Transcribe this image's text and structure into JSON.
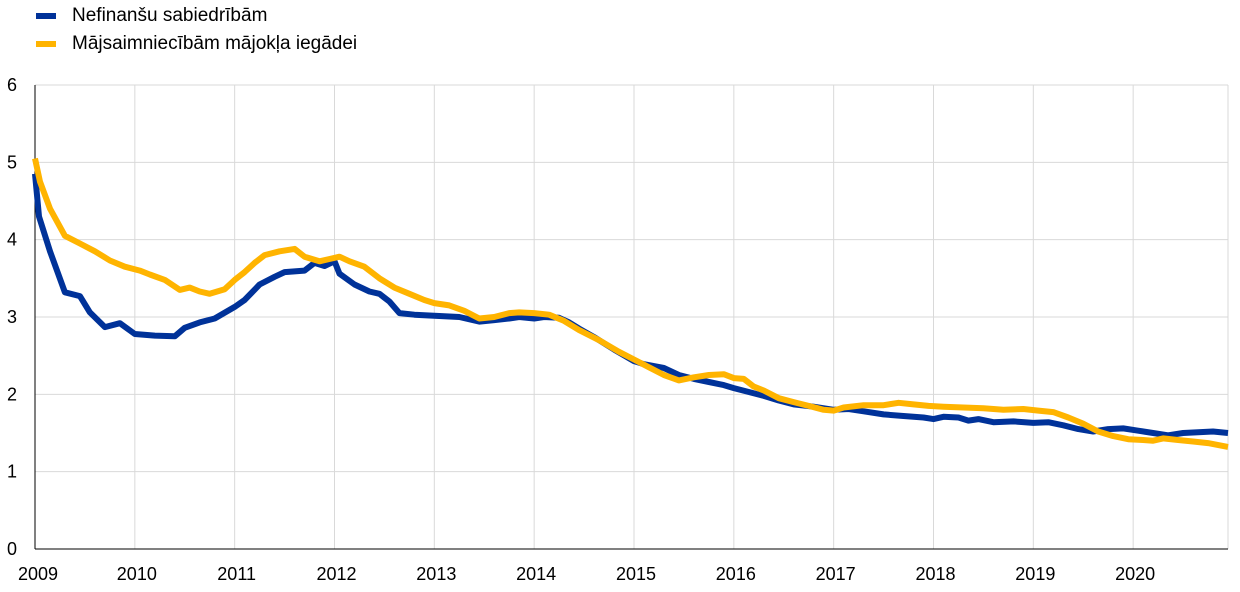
{
  "chart_data": {
    "type": "line",
    "title": "",
    "xlabel": "",
    "ylabel": "",
    "ylim": [
      0,
      6
    ],
    "yticks": [
      0,
      1,
      2,
      3,
      4,
      5,
      6
    ],
    "xlim": [
      2009.0,
      2020.95
    ],
    "xticks": [
      "2009",
      "2010",
      "2011",
      "2012",
      "2013",
      "2014",
      "2015",
      "2016",
      "2017",
      "2018",
      "2019",
      "2020"
    ],
    "grid": true,
    "legend_position": "top-left",
    "series": [
      {
        "name": "Nefinanšu sabiedrībām",
        "color": "#003299",
        "points": [
          [
            2009.0,
            4.85
          ],
          [
            2009.04,
            4.3
          ],
          [
            2009.15,
            3.85
          ],
          [
            2009.3,
            3.32
          ],
          [
            2009.45,
            3.27
          ],
          [
            2009.55,
            3.06
          ],
          [
            2009.7,
            2.87
          ],
          [
            2009.85,
            2.92
          ],
          [
            2010.0,
            2.78
          ],
          [
            2010.2,
            2.76
          ],
          [
            2010.4,
            2.75
          ],
          [
            2010.5,
            2.86
          ],
          [
            2010.65,
            2.93
          ],
          [
            2010.8,
            2.98
          ],
          [
            2011.0,
            3.13
          ],
          [
            2011.1,
            3.22
          ],
          [
            2011.25,
            3.42
          ],
          [
            2011.4,
            3.52
          ],
          [
            2011.5,
            3.58
          ],
          [
            2011.7,
            3.6
          ],
          [
            2011.8,
            3.7
          ],
          [
            2011.9,
            3.66
          ],
          [
            2012.0,
            3.72
          ],
          [
            2012.05,
            3.56
          ],
          [
            2012.2,
            3.42
          ],
          [
            2012.35,
            3.33
          ],
          [
            2012.45,
            3.3
          ],
          [
            2012.55,
            3.2
          ],
          [
            2012.65,
            3.05
          ],
          [
            2012.8,
            3.03
          ],
          [
            2012.95,
            3.02
          ],
          [
            2013.1,
            3.01
          ],
          [
            2013.25,
            3.0
          ],
          [
            2013.45,
            2.94
          ],
          [
            2013.6,
            2.96
          ],
          [
            2013.75,
            2.98
          ],
          [
            2013.85,
            3.0
          ],
          [
            2014.0,
            2.98
          ],
          [
            2014.1,
            3.0
          ],
          [
            2014.25,
            2.99
          ],
          [
            2014.35,
            2.93
          ],
          [
            2014.45,
            2.85
          ],
          [
            2014.6,
            2.74
          ],
          [
            2014.8,
            2.58
          ],
          [
            2015.0,
            2.43
          ],
          [
            2015.1,
            2.39
          ],
          [
            2015.3,
            2.34
          ],
          [
            2015.45,
            2.25
          ],
          [
            2015.6,
            2.2
          ],
          [
            2015.75,
            2.16
          ],
          [
            2015.9,
            2.12
          ],
          [
            2016.0,
            2.08
          ],
          [
            2016.15,
            2.03
          ],
          [
            2016.3,
            1.98
          ],
          [
            2016.45,
            1.92
          ],
          [
            2016.6,
            1.87
          ],
          [
            2016.8,
            1.84
          ],
          [
            2017.0,
            1.8
          ],
          [
            2017.15,
            1.81
          ],
          [
            2017.3,
            1.78
          ],
          [
            2017.5,
            1.74
          ],
          [
            2017.7,
            1.72
          ],
          [
            2017.9,
            1.7
          ],
          [
            2018.0,
            1.68
          ],
          [
            2018.1,
            1.71
          ],
          [
            2018.25,
            1.7
          ],
          [
            2018.35,
            1.66
          ],
          [
            2018.45,
            1.68
          ],
          [
            2018.6,
            1.64
          ],
          [
            2018.8,
            1.65
          ],
          [
            2019.0,
            1.63
          ],
          [
            2019.15,
            1.64
          ],
          [
            2019.3,
            1.6
          ],
          [
            2019.45,
            1.55
          ],
          [
            2019.6,
            1.52
          ],
          [
            2019.75,
            1.55
          ],
          [
            2019.9,
            1.56
          ],
          [
            2020.05,
            1.53
          ],
          [
            2020.2,
            1.5
          ],
          [
            2020.35,
            1.47
          ],
          [
            2020.5,
            1.5
          ],
          [
            2020.65,
            1.51
          ],
          [
            2020.8,
            1.52
          ],
          [
            2020.95,
            1.5
          ]
        ]
      },
      {
        "name": "Mājsaimniecībām mājokļa iegādei",
        "color": "#FFB400",
        "points": [
          [
            2009.0,
            5.05
          ],
          [
            2009.05,
            4.75
          ],
          [
            2009.15,
            4.4
          ],
          [
            2009.3,
            4.05
          ],
          [
            2009.45,
            3.95
          ],
          [
            2009.6,
            3.85
          ],
          [
            2009.75,
            3.73
          ],
          [
            2009.9,
            3.65
          ],
          [
            2010.05,
            3.6
          ],
          [
            2010.15,
            3.55
          ],
          [
            2010.3,
            3.48
          ],
          [
            2010.45,
            3.35
          ],
          [
            2010.55,
            3.38
          ],
          [
            2010.65,
            3.33
          ],
          [
            2010.75,
            3.3
          ],
          [
            2010.9,
            3.36
          ],
          [
            2011.0,
            3.48
          ],
          [
            2011.1,
            3.58
          ],
          [
            2011.2,
            3.7
          ],
          [
            2011.3,
            3.8
          ],
          [
            2011.45,
            3.85
          ],
          [
            2011.6,
            3.88
          ],
          [
            2011.7,
            3.78
          ],
          [
            2011.85,
            3.72
          ],
          [
            2011.95,
            3.75
          ],
          [
            2012.05,
            3.78
          ],
          [
            2012.15,
            3.72
          ],
          [
            2012.3,
            3.65
          ],
          [
            2012.45,
            3.5
          ],
          [
            2012.6,
            3.38
          ],
          [
            2012.75,
            3.3
          ],
          [
            2012.9,
            3.22
          ],
          [
            2013.0,
            3.18
          ],
          [
            2013.15,
            3.15
          ],
          [
            2013.3,
            3.08
          ],
          [
            2013.45,
            2.98
          ],
          [
            2013.6,
            3.0
          ],
          [
            2013.75,
            3.05
          ],
          [
            2013.85,
            3.06
          ],
          [
            2014.0,
            3.05
          ],
          [
            2014.15,
            3.03
          ],
          [
            2014.3,
            2.95
          ],
          [
            2014.45,
            2.83
          ],
          [
            2014.65,
            2.7
          ],
          [
            2014.85,
            2.55
          ],
          [
            2015.0,
            2.45
          ],
          [
            2015.15,
            2.35
          ],
          [
            2015.3,
            2.25
          ],
          [
            2015.45,
            2.18
          ],
          [
            2015.6,
            2.22
          ],
          [
            2015.75,
            2.25
          ],
          [
            2015.9,
            2.26
          ],
          [
            2016.0,
            2.21
          ],
          [
            2016.1,
            2.2
          ],
          [
            2016.2,
            2.1
          ],
          [
            2016.3,
            2.05
          ],
          [
            2016.45,
            1.95
          ],
          [
            2016.6,
            1.9
          ],
          [
            2016.75,
            1.85
          ],
          [
            2016.9,
            1.8
          ],
          [
            2017.0,
            1.79
          ],
          [
            2017.1,
            1.83
          ],
          [
            2017.3,
            1.86
          ],
          [
            2017.5,
            1.86
          ],
          [
            2017.65,
            1.89
          ],
          [
            2017.8,
            1.87
          ],
          [
            2017.95,
            1.85
          ],
          [
            2018.1,
            1.84
          ],
          [
            2018.3,
            1.83
          ],
          [
            2018.5,
            1.82
          ],
          [
            2018.7,
            1.8
          ],
          [
            2018.9,
            1.81
          ],
          [
            2019.05,
            1.79
          ],
          [
            2019.2,
            1.77
          ],
          [
            2019.35,
            1.7
          ],
          [
            2019.5,
            1.62
          ],
          [
            2019.65,
            1.52
          ],
          [
            2019.8,
            1.46
          ],
          [
            2019.95,
            1.42
          ],
          [
            2020.1,
            1.41
          ],
          [
            2020.2,
            1.4
          ],
          [
            2020.3,
            1.43
          ],
          [
            2020.45,
            1.41
          ],
          [
            2020.6,
            1.39
          ],
          [
            2020.75,
            1.37
          ],
          [
            2020.95,
            1.32
          ]
        ]
      }
    ]
  }
}
